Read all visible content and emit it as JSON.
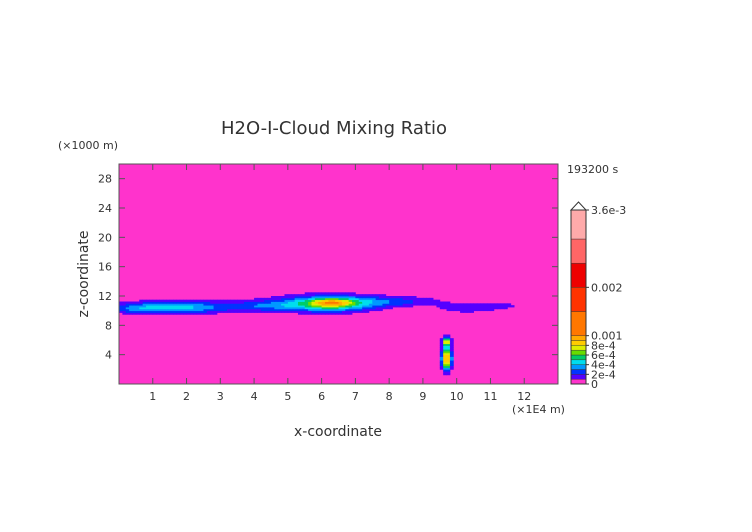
{
  "chart_data": {
    "type": "heatmap",
    "title": "H2O-I-Cloud Mixing Ratio",
    "xlabel": "x-coordinate",
    "ylabel": "z-coordinate",
    "x_unit": "(×1E4 m)",
    "y_unit": "(×1000 m)",
    "timestamp": "193200 s",
    "xlim": [
      0,
      13
    ],
    "ylim": [
      0,
      30
    ],
    "x_ticks": [
      1,
      2,
      3,
      4,
      5,
      6,
      7,
      8,
      9,
      10,
      11,
      12
    ],
    "y_ticks": [
      4,
      8,
      12,
      16,
      20,
      24,
      28
    ],
    "background_value": 0,
    "colorbar": {
      "min": 0,
      "max": 0.0036,
      "levels": [
        {
          "lo": 0,
          "hi": 0.0001,
          "color": "#ff33cc"
        },
        {
          "lo": 0.0001,
          "hi": 0.0002,
          "color": "#5500ff"
        },
        {
          "lo": 0.0002,
          "hi": 0.0003,
          "color": "#0033ff"
        },
        {
          "lo": 0.0003,
          "hi": 0.0004,
          "color": "#0099ff"
        },
        {
          "lo": 0.0004,
          "hi": 0.0005,
          "color": "#00ddee"
        },
        {
          "lo": 0.0005,
          "hi": 0.0006,
          "color": "#00cc66"
        },
        {
          "lo": 0.0006,
          "hi": 0.0007,
          "color": "#66dd00"
        },
        {
          "lo": 0.0007,
          "hi": 0.0008,
          "color": "#ddee00"
        },
        {
          "lo": 0.0008,
          "hi": 0.0009,
          "color": "#ffcc00"
        },
        {
          "lo": 0.0009,
          "hi": 0.001,
          "color": "#ffaa00"
        },
        {
          "lo": 0.001,
          "hi": 0.0015,
          "color": "#ff7700"
        },
        {
          "lo": 0.0015,
          "hi": 0.002,
          "color": "#ff3300"
        },
        {
          "lo": 0.002,
          "hi": 0.0025,
          "color": "#ee0000"
        },
        {
          "lo": 0.0025,
          "hi": 0.003,
          "color": "#ff6666"
        },
        {
          "lo": 0.003,
          "hi": 0.0036,
          "color": "#ffaaaa"
        }
      ],
      "labels": [
        {
          "value": 0.0036,
          "text": "3.6e-3"
        },
        {
          "value": 0.002,
          "text": "0.002"
        },
        {
          "value": 0.001,
          "text": "0.001"
        },
        {
          "value": 0.0008,
          "text": "8e-4"
        },
        {
          "value": 0.0006,
          "text": "6e-4"
        },
        {
          "value": 0.0004,
          "text": "4e-4"
        },
        {
          "value": 0.0002,
          "text": "2e-4"
        },
        {
          "value": 0,
          "text": "0"
        }
      ]
    },
    "features": [
      {
        "name": "main cloud band",
        "x_range": [
          0,
          9.5
        ],
        "z_range": [
          9.5,
          12.5
        ],
        "peak_value": 0.0009,
        "peak_x": 6.3,
        "peak_z": 11.0
      },
      {
        "name": "trailing thin layer",
        "x_range": [
          9.5,
          12.3
        ],
        "z_range": [
          9.5,
          11.5
        ],
        "peak_value": 0.0002
      },
      {
        "name": "isolated column",
        "x_range": [
          9.5,
          9.9
        ],
        "z_range": [
          0.5,
          6.5
        ],
        "peak_value": 0.0012
      }
    ]
  }
}
